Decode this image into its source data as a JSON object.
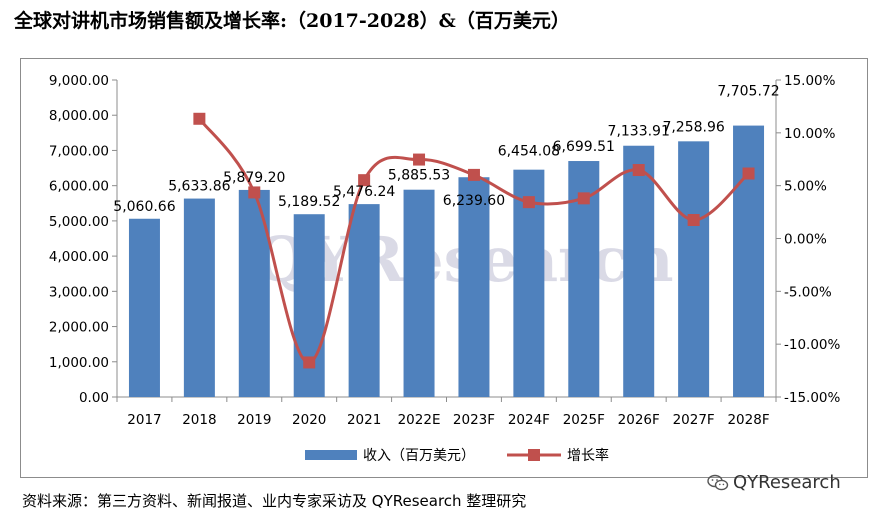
{
  "title": "全球对讲机市场销售额及增长率:（2017-2028）&（百万美元）",
  "source": "资料来源：第三方资料、新闻报道、业内专家采访及 QYResearch 整理研究",
  "watermark": "QYResearch",
  "brand": "QYResearch",
  "chart_data": {
    "type": "bar",
    "categories": [
      "2017",
      "2018",
      "2019",
      "2020",
      "2021",
      "2022E",
      "2023F",
      "2024F",
      "2025F",
      "2026F",
      "2027F",
      "2028F"
    ],
    "series": [
      {
        "name": "收入（百万美元）",
        "type": "bar",
        "axis": "left",
        "values": [
          5060.66,
          5633.86,
          5879.2,
          5189.52,
          5476.24,
          5885.53,
          6239.6,
          6454.08,
          6699.51,
          7133.91,
          7258.96,
          7705.72
        ],
        "labels": [
          "5,060.66",
          "5,633.86",
          "5,879.20",
          "5,189.52",
          "5,476.24",
          "5,885.53",
          "6,239.60",
          "6,454.08",
          "6,699.51",
          "7,133.91",
          "7,258.96",
          "7,705.72"
        ],
        "color": "#4f81bd"
      },
      {
        "name": "增长率",
        "type": "line",
        "axis": "right",
        "values": [
          null,
          11.33,
          4.36,
          -11.73,
          5.52,
          7.47,
          6.02,
          3.44,
          3.8,
          6.48,
          1.75,
          6.15
        ],
        "color": "#c0504d"
      }
    ],
    "ylim_left": [
      0,
      9000
    ],
    "yticks_left": [
      "0.00",
      "1,000.00",
      "2,000.00",
      "3,000.00",
      "4,000.00",
      "5,000.00",
      "6,000.00",
      "7,000.00",
      "8,000.00",
      "9,000.00"
    ],
    "ylim_right": [
      -15,
      15
    ],
    "yticks_right": [
      "-15.00%",
      "-10.00%",
      "-5.00%",
      "0.00%",
      "5.00%",
      "10.00%",
      "15.00%"
    ],
    "legend_position": "bottom",
    "grid": false
  }
}
